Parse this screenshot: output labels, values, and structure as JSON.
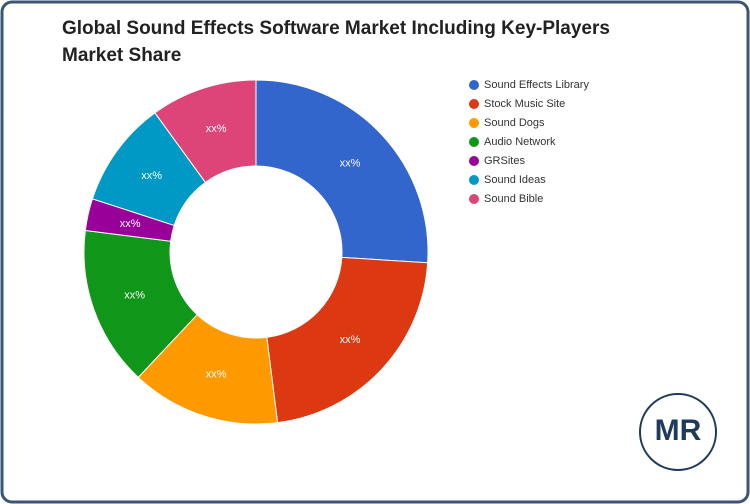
{
  "chart_data": {
    "type": "donut",
    "title": [
      "Global Sound Effects Software Market Including Key-Players",
      "Market Share"
    ],
    "categories": [
      "Sound Effects Library",
      "Stock Music Site",
      "Sound Dogs",
      "Audio Network",
      "GRSites",
      "Sound Ideas",
      "Sound Bible"
    ],
    "values": [
      26,
      22,
      14,
      15,
      3,
      10,
      10
    ],
    "value_labels": [
      "xx%",
      "xx%",
      "xx%",
      "xx%",
      "xx%",
      "xx%",
      "xx%"
    ],
    "colors": [
      "#3366cc",
      "#dc3912",
      "#ff9900",
      "#109618",
      "#990099",
      "#0099c6",
      "#dd4477"
    ],
    "legend": "right"
  },
  "logo": "MR"
}
